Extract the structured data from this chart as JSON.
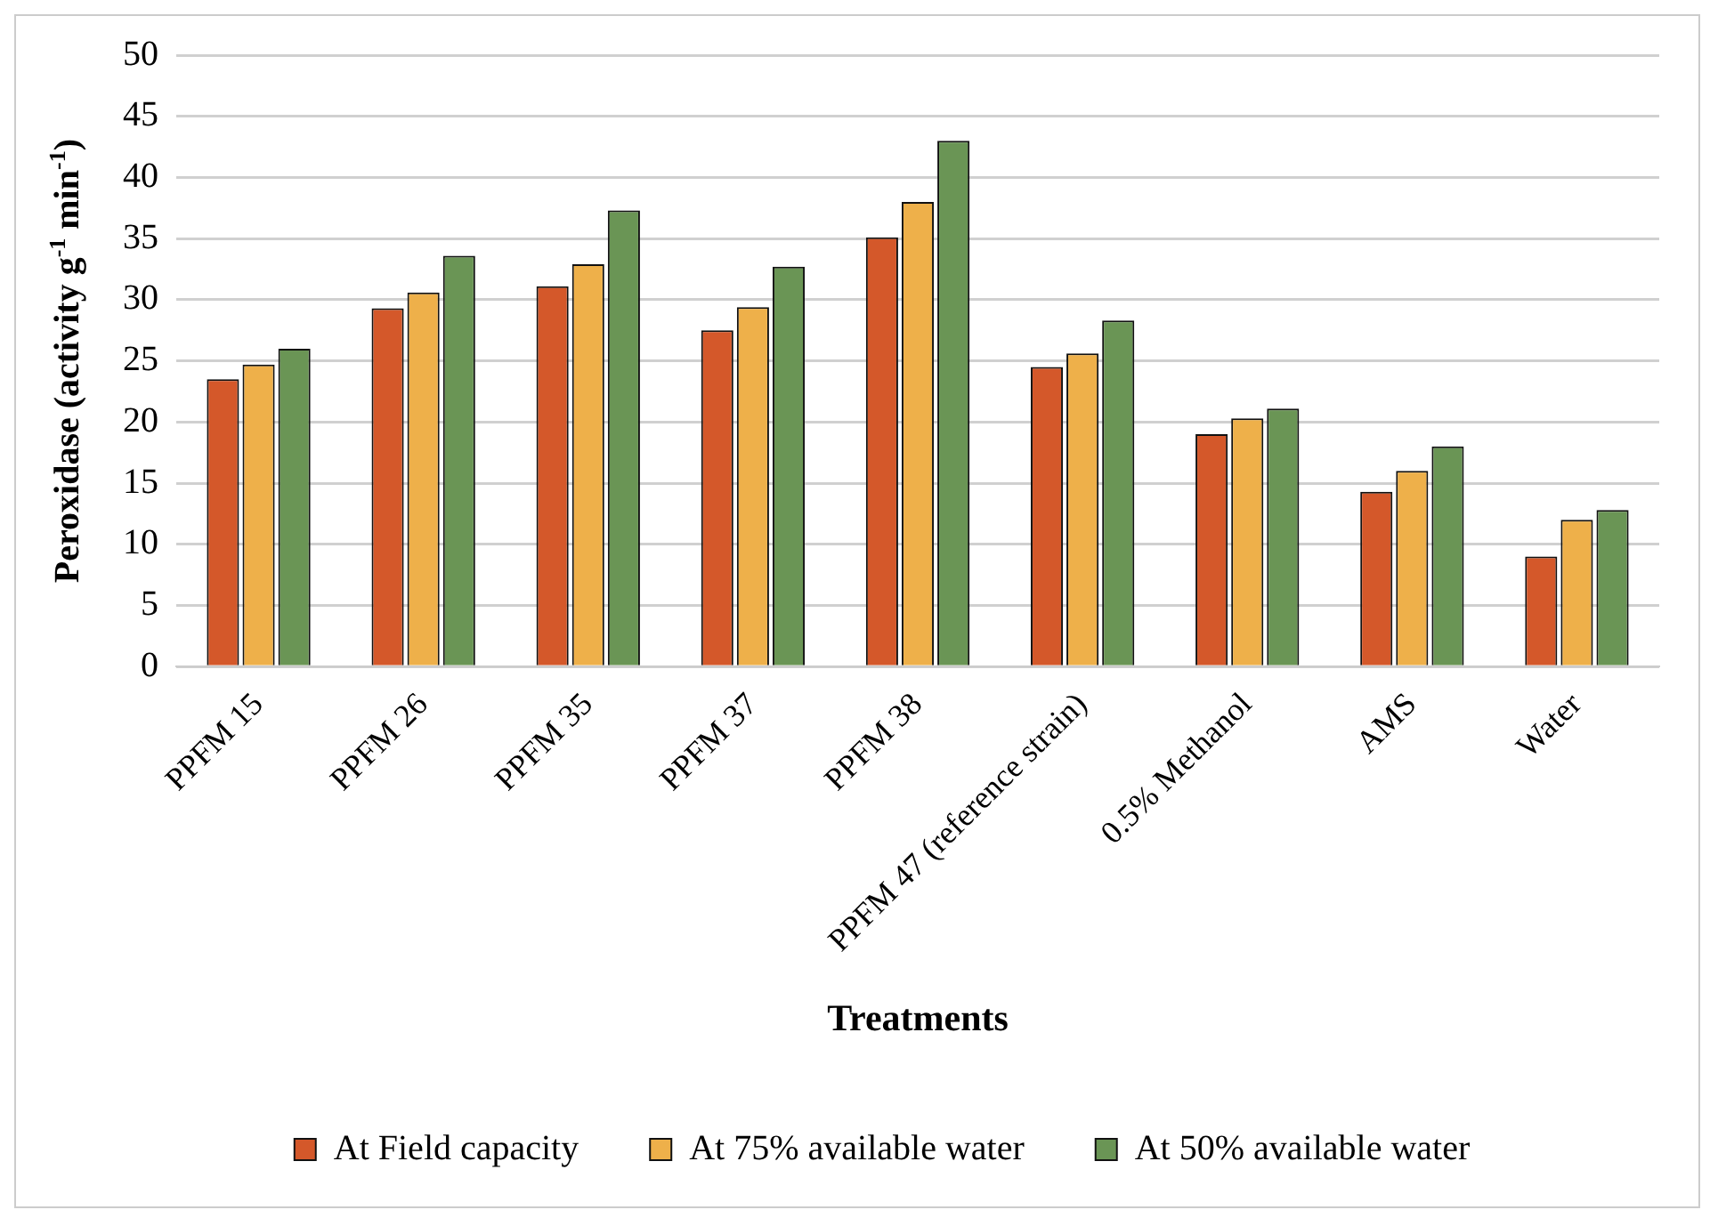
{
  "chart_data": {
    "type": "bar",
    "xlabel": "Treatments",
    "ylabel": "Peroxidase (activity g$^{-1}$ min$^{-1}$)",
    "categories": [
      "PPFM 15",
      "PPFM 26",
      "PPFM 35",
      "PPFM 37",
      "PPFM 38",
      "PPFM 47 (reference strain)",
      "0.5% Methanol",
      "AMS",
      "Water"
    ],
    "series": [
      {
        "name": "At Field capacity",
        "color": "#d4582a",
        "values": [
          23.5,
          29.3,
          31.1,
          27.5,
          35.1,
          24.5,
          19,
          14.3,
          9
        ]
      },
      {
        "name": "At 75% available water",
        "color": "#eeb04a",
        "values": [
          24.7,
          30.6,
          32.9,
          29.4,
          38,
          25.6,
          20.3,
          16,
          12
        ]
      },
      {
        "name": "At 50% available water",
        "color": "#6a9555",
        "values": [
          26,
          33.6,
          37.3,
          32.7,
          43,
          28.3,
          21.1,
          18,
          12.8
        ]
      }
    ],
    "ylim": [
      0,
      50
    ],
    "yticks": [
      0,
      5,
      10,
      15,
      20,
      25,
      30,
      35,
      40,
      45,
      50
    ],
    "grid": "y",
    "legend": "bottom"
  }
}
